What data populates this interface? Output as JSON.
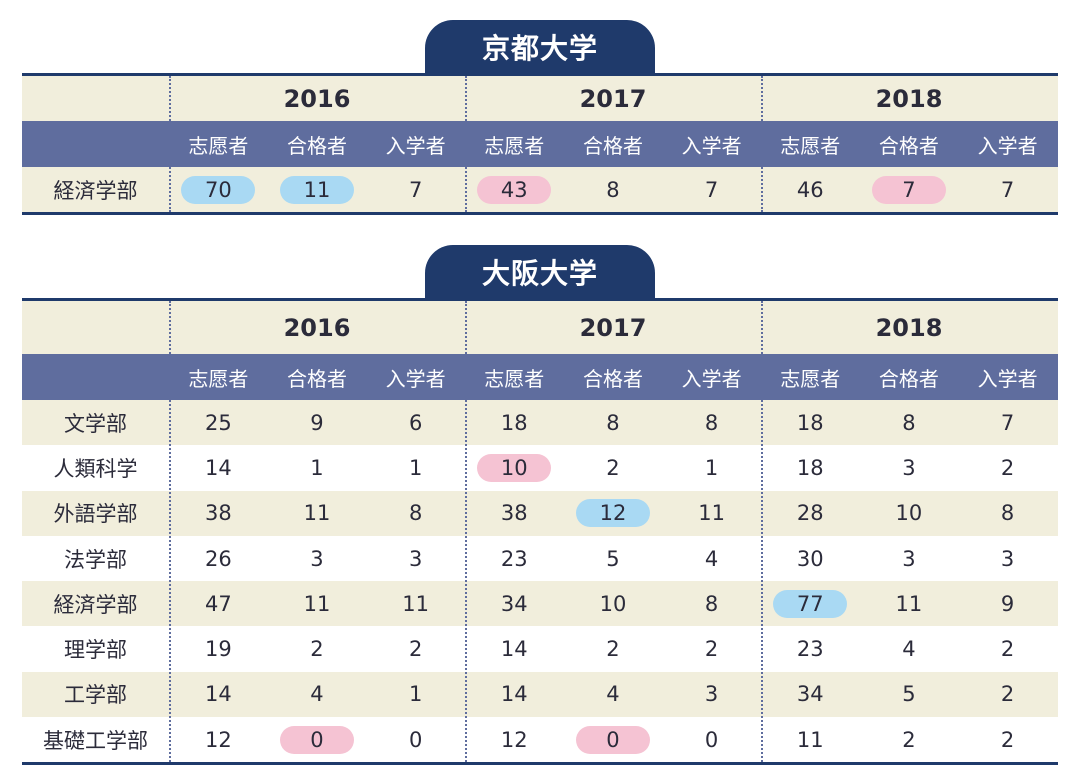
{
  "chart_data": [
    {
      "type": "table",
      "title": "京都大学",
      "years": [
        "2016",
        "2017",
        "2018"
      ],
      "columns": [
        "志愿者",
        "合格者",
        "入学者"
      ],
      "rows": [
        {
          "label": "経済学部",
          "values": [
            {
              "v": "70",
              "hl": "blue"
            },
            {
              "v": "11",
              "hl": "blue"
            },
            {
              "v": "7"
            },
            {
              "v": "43",
              "hl": "pink"
            },
            {
              "v": "8"
            },
            {
              "v": "7"
            },
            {
              "v": "46"
            },
            {
              "v": "7",
              "hl": "pink"
            },
            {
              "v": "7"
            }
          ]
        }
      ]
    },
    {
      "type": "table",
      "title": "大阪大学",
      "years": [
        "2016",
        "2017",
        "2018"
      ],
      "columns": [
        "志愿者",
        "合格者",
        "入学者"
      ],
      "rows": [
        {
          "label": "文学部",
          "values": [
            {
              "v": "25"
            },
            {
              "v": "9"
            },
            {
              "v": "6"
            },
            {
              "v": "18"
            },
            {
              "v": "8"
            },
            {
              "v": "8"
            },
            {
              "v": "18"
            },
            {
              "v": "8"
            },
            {
              "v": "7"
            }
          ]
        },
        {
          "label": "人類科学",
          "values": [
            {
              "v": "14"
            },
            {
              "v": "1"
            },
            {
              "v": "1"
            },
            {
              "v": "10",
              "hl": "pink"
            },
            {
              "v": "2"
            },
            {
              "v": "1"
            },
            {
              "v": "18"
            },
            {
              "v": "3"
            },
            {
              "v": "2"
            }
          ]
        },
        {
          "label": "外語学部",
          "values": [
            {
              "v": "38"
            },
            {
              "v": "11"
            },
            {
              "v": "8"
            },
            {
              "v": "38"
            },
            {
              "v": "12",
              "hl": "blue"
            },
            {
              "v": "11"
            },
            {
              "v": "28"
            },
            {
              "v": "10"
            },
            {
              "v": "8"
            }
          ]
        },
        {
          "label": "法学部",
          "values": [
            {
              "v": "26"
            },
            {
              "v": "3"
            },
            {
              "v": "3"
            },
            {
              "v": "23"
            },
            {
              "v": "5"
            },
            {
              "v": "4"
            },
            {
              "v": "30"
            },
            {
              "v": "3"
            },
            {
              "v": "3"
            }
          ]
        },
        {
          "label": "経済学部",
          "values": [
            {
              "v": "47"
            },
            {
              "v": "11"
            },
            {
              "v": "11"
            },
            {
              "v": "34"
            },
            {
              "v": "10"
            },
            {
              "v": "8"
            },
            {
              "v": "77",
              "hl": "blue"
            },
            {
              "v": "11"
            },
            {
              "v": "9"
            }
          ]
        },
        {
          "label": "理学部",
          "values": [
            {
              "v": "19"
            },
            {
              "v": "2"
            },
            {
              "v": "2"
            },
            {
              "v": "14"
            },
            {
              "v": "2"
            },
            {
              "v": "2"
            },
            {
              "v": "23"
            },
            {
              "v": "4"
            },
            {
              "v": "2"
            }
          ]
        },
        {
          "label": "工学部",
          "values": [
            {
              "v": "14"
            },
            {
              "v": "4"
            },
            {
              "v": "1"
            },
            {
              "v": "14"
            },
            {
              "v": "4"
            },
            {
              "v": "3"
            },
            {
              "v": "34"
            },
            {
              "v": "5"
            },
            {
              "v": "2"
            }
          ]
        },
        {
          "label": "基礎工学部",
          "values": [
            {
              "v": "12"
            },
            {
              "v": "0",
              "hl": "pink"
            },
            {
              "v": "0"
            },
            {
              "v": "12"
            },
            {
              "v": "0",
              "hl": "pink"
            },
            {
              "v": "0"
            },
            {
              "v": "11"
            },
            {
              "v": "2"
            },
            {
              "v": "2"
            }
          ]
        }
      ]
    }
  ],
  "colors": {
    "navy": "#1f3a6b",
    "header": "#5f6d9e",
    "cream": "#f1eedc",
    "highlight_blue": "#a9d9f3",
    "highlight_pink": "#f5c3d3"
  }
}
